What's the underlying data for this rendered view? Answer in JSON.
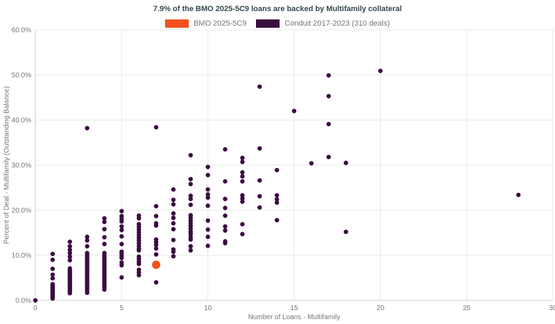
{
  "title": "7.9% of the BMO 2025-5C9 loans are backed by Multifamily collateral",
  "legend": [
    {
      "label": "BMO 2025-5C9",
      "color": "#f4511e"
    },
    {
      "label": "Conduit 2017-2023 (310 deals)",
      "color": "#3a0d40"
    }
  ],
  "chart_data": {
    "type": "scatter",
    "title": "7.9% of the BMO 2025-5C9 loans are backed by Multifamily collateral",
    "xlabel": "Number of Loans - Multifamily",
    "ylabel": "Percent of Deal - Multifamily (Outstanding Balance)",
    "xlim": [
      0,
      30
    ],
    "ylim": [
      0,
      60
    ],
    "grid": true,
    "legend_position": "top",
    "x_tick_values": [
      0,
      5,
      10,
      15,
      20,
      25,
      30
    ],
    "x_tick_labels": [
      "0",
      "5",
      "10",
      "15",
      "20",
      "25",
      "30"
    ],
    "y_tick_values": [
      0,
      10,
      20,
      30,
      40,
      50,
      60
    ],
    "y_tick_labels": [
      "0.0%",
      "10.0%",
      "20.0%",
      "30.0%",
      "40.0%",
      "50.0%",
      "60.0%"
    ],
    "colors": {
      "grid": "#e7e7e7",
      "axis": "#cfcfcf",
      "tick_text": "#757575"
    },
    "series": [
      {
        "name": "BMO 2025-5C9",
        "color": "#f4511e",
        "marker_size": 6,
        "points": [
          [
            7,
            7.9
          ]
        ]
      },
      {
        "name": "Conduit 2017-2023 (310 deals)",
        "color": "#3a0d40",
        "marker_size": 3.2,
        "points": [
          [
            0,
            0.0
          ],
          [
            1,
            10.3
          ],
          [
            1,
            9.0
          ],
          [
            1,
            7.0
          ],
          [
            1,
            5.7
          ],
          [
            1,
            4.9
          ],
          [
            1,
            3.6
          ],
          [
            1,
            3.4
          ],
          [
            1,
            3.2
          ],
          [
            1,
            3.0
          ],
          [
            1,
            2.8
          ],
          [
            1,
            2.6
          ],
          [
            1,
            2.4
          ],
          [
            1,
            2.2
          ],
          [
            1,
            2.0
          ],
          [
            1,
            1.8
          ],
          [
            1,
            1.6
          ],
          [
            1,
            1.4
          ],
          [
            1,
            1.2
          ],
          [
            1,
            1.0
          ],
          [
            1,
            0.8
          ],
          [
            1,
            0.6
          ],
          [
            1,
            0.4
          ],
          [
            2,
            13.0
          ],
          [
            2,
            12.0
          ],
          [
            2,
            11.2
          ],
          [
            2,
            10.5
          ],
          [
            2,
            9.7
          ],
          [
            2,
            8.9
          ],
          [
            2,
            7.1
          ],
          [
            2,
            6.7
          ],
          [
            2,
            6.4
          ],
          [
            2,
            6.1
          ],
          [
            2,
            5.8
          ],
          [
            2,
            5.5
          ],
          [
            2,
            5.2
          ],
          [
            2,
            4.9
          ],
          [
            2,
            4.6
          ],
          [
            2,
            4.3
          ],
          [
            2,
            4.0
          ],
          [
            2,
            3.7
          ],
          [
            2,
            3.4
          ],
          [
            2,
            3.1
          ],
          [
            2,
            2.8
          ],
          [
            2,
            2.5
          ],
          [
            2,
            2.2
          ],
          [
            2,
            1.9
          ],
          [
            2,
            1.6
          ],
          [
            3,
            38.2
          ],
          [
            3,
            14.1
          ],
          [
            3,
            13.3
          ],
          [
            3,
            12.0
          ],
          [
            3,
            10.5
          ],
          [
            3,
            10.1
          ],
          [
            3,
            9.7
          ],
          [
            3,
            9.3
          ],
          [
            3,
            8.9
          ],
          [
            3,
            8.5
          ],
          [
            3,
            8.1
          ],
          [
            3,
            7.7
          ],
          [
            3,
            7.3
          ],
          [
            3,
            6.9
          ],
          [
            3,
            6.5
          ],
          [
            3,
            6.1
          ],
          [
            3,
            5.7
          ],
          [
            3,
            5.3
          ],
          [
            3,
            4.9
          ],
          [
            3,
            4.5
          ],
          [
            3,
            4.1
          ],
          [
            3,
            3.7
          ],
          [
            3,
            3.3
          ],
          [
            3,
            2.9
          ],
          [
            3,
            2.5
          ],
          [
            3,
            2.1
          ],
          [
            3,
            1.7
          ],
          [
            4,
            18.2
          ],
          [
            4,
            17.4
          ],
          [
            4,
            15.8
          ],
          [
            4,
            14.0
          ],
          [
            4,
            12.5
          ],
          [
            4,
            10.5
          ],
          [
            4,
            10.1
          ],
          [
            4,
            9.7
          ],
          [
            4,
            9.3
          ],
          [
            4,
            8.9
          ],
          [
            4,
            8.5
          ],
          [
            4,
            8.1
          ],
          [
            4,
            7.7
          ],
          [
            4,
            7.3
          ],
          [
            4,
            6.9
          ],
          [
            4,
            6.5
          ],
          [
            4,
            6.1
          ],
          [
            4,
            5.7
          ],
          [
            4,
            5.3
          ],
          [
            4,
            4.9
          ],
          [
            4,
            4.5
          ],
          [
            4,
            4.1
          ],
          [
            4,
            3.7
          ],
          [
            4,
            3.3
          ],
          [
            4,
            2.9
          ],
          [
            4,
            2.4
          ],
          [
            5,
            19.8
          ],
          [
            5,
            18.7
          ],
          [
            5,
            18.1
          ],
          [
            5,
            17.5
          ],
          [
            5,
            16.4
          ],
          [
            5,
            15.6
          ],
          [
            5,
            14.2
          ],
          [
            5,
            12.5
          ],
          [
            5,
            10.8
          ],
          [
            5,
            10.3
          ],
          [
            5,
            9.8
          ],
          [
            5,
            9.4
          ],
          [
            5,
            8.4
          ],
          [
            5,
            7.8
          ],
          [
            5,
            5.1
          ],
          [
            6,
            18.8
          ],
          [
            6,
            18.2
          ],
          [
            6,
            16.9
          ],
          [
            6,
            16.3
          ],
          [
            6,
            15.7
          ],
          [
            6,
            15.1
          ],
          [
            6,
            14.5
          ],
          [
            6,
            13.9
          ],
          [
            6,
            13.3
          ],
          [
            6,
            12.7
          ],
          [
            6,
            12.1
          ],
          [
            6,
            11.5
          ],
          [
            6,
            11.1
          ],
          [
            6,
            9.7
          ],
          [
            6,
            9.2
          ],
          [
            6,
            8.6
          ],
          [
            6,
            8.1
          ],
          [
            6,
            6.8
          ],
          [
            6,
            6.2
          ],
          [
            6,
            5.6
          ],
          [
            7,
            38.4
          ],
          [
            7,
            20.9
          ],
          [
            7,
            18.7
          ],
          [
            7,
            17.1
          ],
          [
            7,
            16.6
          ],
          [
            7,
            13.5
          ],
          [
            7,
            12.9
          ],
          [
            7,
            12.3
          ],
          [
            7,
            11.5
          ],
          [
            7,
            10.2
          ],
          [
            7,
            4.0
          ],
          [
            8,
            24.6
          ],
          [
            8,
            22.3
          ],
          [
            8,
            21.3
          ],
          [
            8,
            19.3
          ],
          [
            8,
            18.3
          ],
          [
            8,
            17.1
          ],
          [
            8,
            15.8
          ],
          [
            8,
            13.4
          ],
          [
            8,
            11.3
          ],
          [
            8,
            10.8
          ],
          [
            8,
            9.8
          ],
          [
            9,
            32.2
          ],
          [
            9,
            26.9
          ],
          [
            9,
            25.8
          ],
          [
            9,
            23.2
          ],
          [
            9,
            22.5
          ],
          [
            9,
            21.2
          ],
          [
            9,
            18.9
          ],
          [
            9,
            18.3
          ],
          [
            9,
            17.7
          ],
          [
            9,
            17.1
          ],
          [
            9,
            16.5
          ],
          [
            9,
            15.9
          ],
          [
            9,
            15.2
          ],
          [
            9,
            14.7
          ],
          [
            9,
            14.0
          ],
          [
            9,
            13.5
          ],
          [
            9,
            12.0
          ],
          [
            9,
            11.1
          ],
          [
            10,
            29.6
          ],
          [
            10,
            27.8
          ],
          [
            10,
            24.6
          ],
          [
            10,
            23.5
          ],
          [
            10,
            22.8
          ],
          [
            10,
            21.0
          ],
          [
            10,
            17.7
          ],
          [
            10,
            15.7
          ],
          [
            10,
            14.1
          ],
          [
            10,
            12.1
          ],
          [
            11,
            33.5
          ],
          [
            11,
            26.4
          ],
          [
            11,
            22.5
          ],
          [
            11,
            20.5
          ],
          [
            11,
            18.8
          ],
          [
            11,
            16.4
          ],
          [
            11,
            15.5
          ],
          [
            11,
            13.1
          ],
          [
            11,
            12.7
          ],
          [
            12,
            31.6
          ],
          [
            12,
            30.7
          ],
          [
            12,
            28.4
          ],
          [
            12,
            27.5
          ],
          [
            12,
            26.4
          ],
          [
            12,
            23.3
          ],
          [
            12,
            22.6
          ],
          [
            12,
            21.9
          ],
          [
            12,
            16.9
          ],
          [
            12,
            14.7
          ],
          [
            13,
            47.4
          ],
          [
            13,
            33.7
          ],
          [
            13,
            26.6
          ],
          [
            13,
            23.1
          ],
          [
            13,
            20.6
          ],
          [
            14,
            28.9
          ],
          [
            14,
            23.3
          ],
          [
            14,
            22.4
          ],
          [
            14,
            21.7
          ],
          [
            14,
            17.8
          ],
          [
            15,
            42.0
          ],
          [
            16,
            30.4
          ],
          [
            17,
            49.9
          ],
          [
            17,
            45.3
          ],
          [
            17,
            39.1
          ],
          [
            17,
            31.8
          ],
          [
            18,
            30.5
          ],
          [
            18,
            15.2
          ],
          [
            20,
            50.9
          ],
          [
            28,
            23.4
          ]
        ]
      }
    ]
  }
}
